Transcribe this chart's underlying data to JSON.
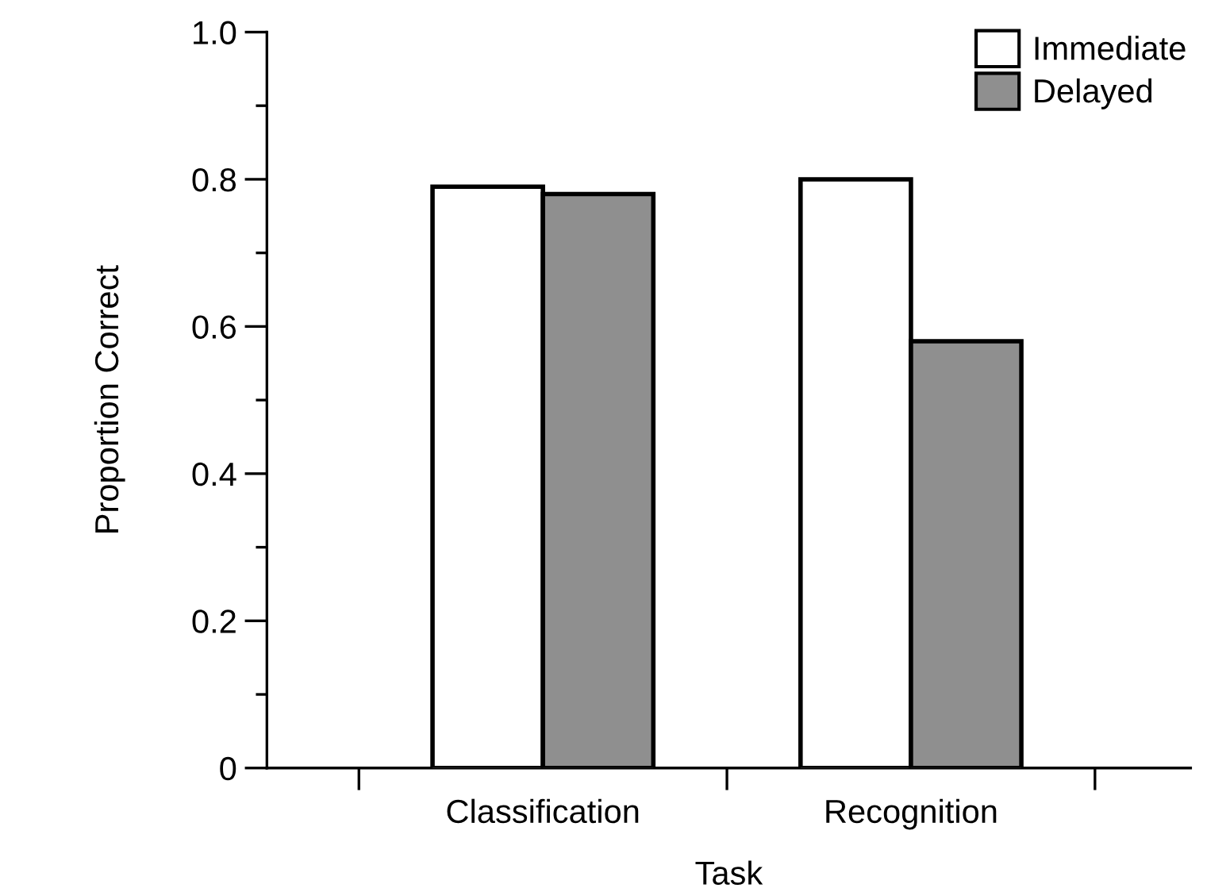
{
  "chart_data": {
    "type": "bar",
    "xlabel": "Task",
    "ylabel": "Proportion Correct",
    "categories": [
      "Classification",
      "Recognition"
    ],
    "series": [
      {
        "name": "Immediate",
        "color": "#ffffff",
        "values": [
          0.79,
          0.8
        ]
      },
      {
        "name": "Delayed",
        "color": "#8f8f8f",
        "values": [
          0.78,
          0.58
        ]
      }
    ],
    "ylim": [
      0,
      1.0
    ],
    "yticks": [
      {
        "value": 0,
        "label": "0"
      },
      0.2,
      0.4,
      0.6,
      0.8,
      {
        "value": 1.0,
        "label": "1.0"
      }
    ],
    "legend": "top right",
    "grid": false
  }
}
